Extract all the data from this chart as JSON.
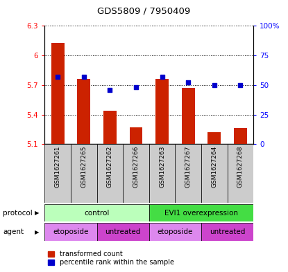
{
  "title": "GDS5809 / 7950409",
  "samples": [
    "GSM1627261",
    "GSM1627265",
    "GSM1627262",
    "GSM1627266",
    "GSM1627263",
    "GSM1627267",
    "GSM1627264",
    "GSM1627268"
  ],
  "transformed_counts": [
    6.13,
    5.76,
    5.44,
    5.27,
    5.76,
    5.67,
    5.22,
    5.26
  ],
  "percentile_ranks": [
    57,
    57,
    46,
    48,
    57,
    52,
    50,
    50
  ],
  "ylim_left": [
    5.1,
    6.3
  ],
  "ylim_right": [
    0,
    100
  ],
  "yticks_left": [
    5.1,
    5.4,
    5.7,
    6.0,
    6.3
  ],
  "yticks_right": [
    0,
    25,
    50,
    75,
    100
  ],
  "ytick_labels_left": [
    "5.1",
    "5.4",
    "5.7",
    "6",
    "6.3"
  ],
  "ytick_labels_right": [
    "0",
    "25",
    "50",
    "75",
    "100%"
  ],
  "bar_color": "#cc2200",
  "dot_color": "#0000cc",
  "bar_bottom": 5.1,
  "protocol_groups": [
    {
      "label": "control",
      "start": 0,
      "end": 4,
      "color": "#bbffbb"
    },
    {
      "label": "EVI1 overexpression",
      "start": 4,
      "end": 8,
      "color": "#44dd44"
    }
  ],
  "agent_groups": [
    {
      "label": "etoposide",
      "start": 0,
      "end": 2,
      "color": "#dd88ee"
    },
    {
      "label": "untreated",
      "start": 2,
      "end": 4,
      "color": "#cc44cc"
    },
    {
      "label": "etoposide",
      "start": 4,
      "end": 6,
      "color": "#dd88ee"
    },
    {
      "label": "untreated",
      "start": 6,
      "end": 8,
      "color": "#cc44cc"
    }
  ],
  "xlabel_protocol": "protocol",
  "xlabel_agent": "agent",
  "legend_bar_label": "transformed count",
  "legend_dot_label": "percentile rank within the sample",
  "sample_area_color": "#cccccc",
  "fig_width": 4.15,
  "fig_height": 3.93,
  "dpi": 100
}
